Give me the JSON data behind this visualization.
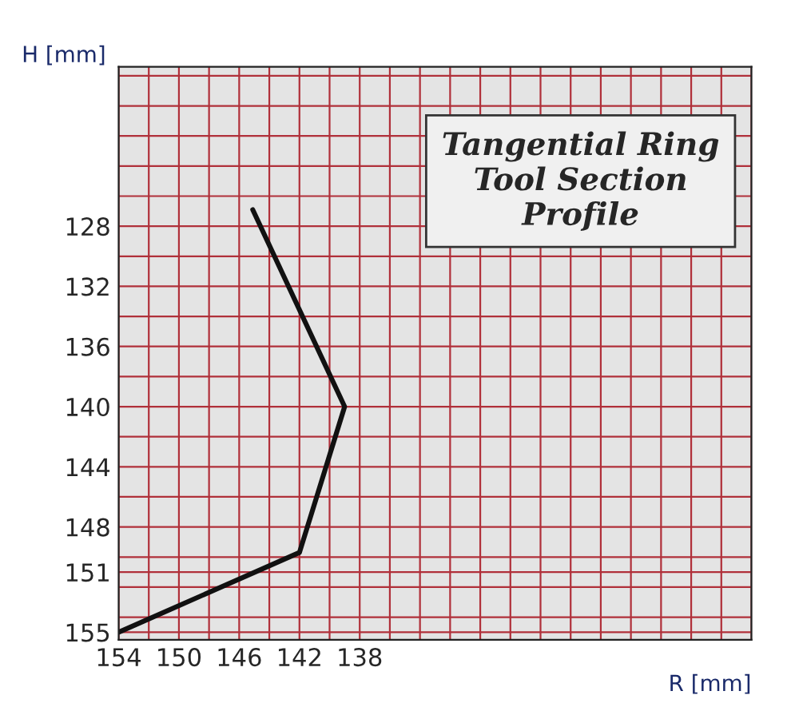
{
  "chart_data": {
    "type": "line",
    "title": "Tangential Ring\nTool Section\nProfile",
    "xlabel": "R [mm]",
    "ylabel": "H [mm]",
    "x": [
      145.1,
      139,
      142,
      154
    ],
    "series": [
      {
        "color": "#111111",
        "values": [
          126.9,
          140,
          149.7,
          155
        ]
      }
    ],
    "xlim": [
      154,
      112
    ],
    "ylim": [
      155.5,
      117.4
    ],
    "xticks": [
      154,
      150,
      146,
      142,
      138
    ],
    "yticks": [
      128,
      132,
      136,
      140,
      144,
      148,
      151,
      155
    ],
    "grid": true,
    "marker": "none",
    "line_style": "solid"
  }
}
